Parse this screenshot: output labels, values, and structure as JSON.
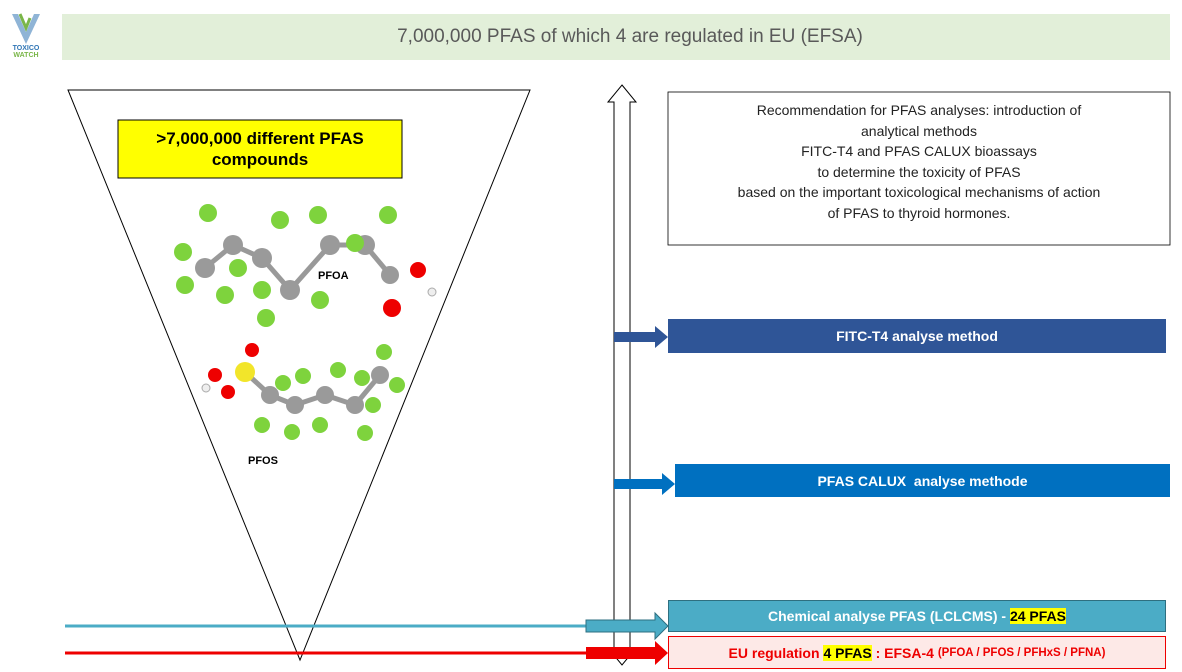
{
  "logo": {
    "top": "TOXICO",
    "bottom": "WATCH"
  },
  "header": {
    "title": "7,000,000 PFAS of which 4 are regulated in EU (EFSA)"
  },
  "funnel": {
    "label": ">7,000,000 different PFAS compounds",
    "molecules": [
      "PFOA",
      "PFOS"
    ]
  },
  "recommendation": {
    "lines": [
      "Recommendation for PFAS analyses: introduction of",
      "analytical methods",
      "FITC-T4 and PFAS CALUX bioassays",
      "to determine the toxicity of PFAS",
      "based on the important toxicological mechanisms of action",
      "of PFAS to thyroid hormones."
    ]
  },
  "methods": [
    {
      "label": "FITC-T4 analyse method"
    },
    {
      "label": "PFAS CALUX  analyse methode"
    },
    {
      "label_parts": [
        "Chemical analyse PFAS (LCLCMS) - ",
        "24 PFAS"
      ]
    },
    {
      "label_parts": [
        "EU regulation ",
        "4 PFAS",
        " : ",
        "EFSA-4 ",
        "(PFOA / PFOS / PFHxS / PFNA)"
      ]
    }
  ]
}
